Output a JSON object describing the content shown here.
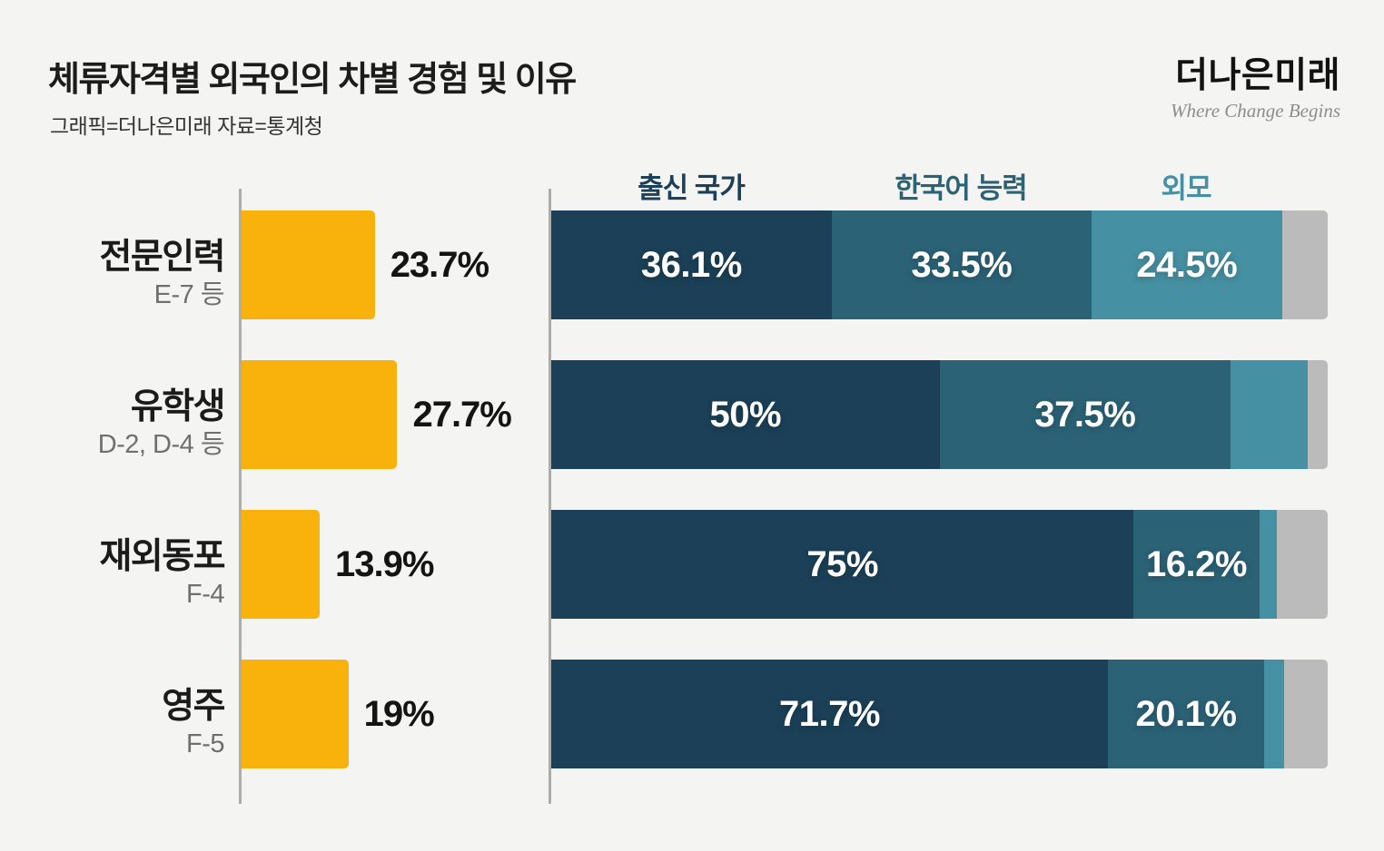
{
  "header": {
    "title": "체류자격별 외국인의 차별 경험 및 이유",
    "subtitle": "그래픽=더나은미래  자료=통계청",
    "logo_wordmark": "더나은미래",
    "logo_tagline": "Where Change Begins"
  },
  "colors": {
    "background": "#F4F4F2",
    "experience_bar": "#F9B20B",
    "origin_segment": "#1B4057",
    "korean_segment": "#2B6276",
    "appearance_segment": "#4590A2",
    "remainder_segment": "#BBBBBB",
    "axis_line": "#ACACAC"
  },
  "chart_data": {
    "type": "bar",
    "layout": "paired horizontal bars: left bar = discrimination experience rate (%), right bar = 100%-stacked reasons for discrimination",
    "unit": "%",
    "legend_position": "column headers above first stacked bar",
    "grid": false,
    "columns": [
      {
        "label": "출신 국가",
        "color": "#1B4057"
      },
      {
        "label": "한국어 능력",
        "color": "#2B6276"
      },
      {
        "label": "외모",
        "color": "#4590A2"
      }
    ],
    "unlabeled_segment_values_estimated": true,
    "rows": [
      {
        "label": "전문인력",
        "sublabel": "E-7 등",
        "experience_value": 23.7,
        "experience_label": "23.7%",
        "segments": [
          {
            "name": "출신 국가",
            "value": 36.1,
            "label": "36.1%"
          },
          {
            "name": "한국어 능력",
            "value": 33.5,
            "label": "33.5%"
          },
          {
            "name": "외모",
            "value": 24.5,
            "label": "24.5%"
          },
          {
            "name": "remainder",
            "value": 5.9,
            "label": ""
          }
        ]
      },
      {
        "label": "유학생",
        "sublabel": "D-2, D-4 등",
        "experience_value": 27.7,
        "experience_label": "27.7%",
        "segments": [
          {
            "name": "출신 국가",
            "value": 50,
            "label": "50%"
          },
          {
            "name": "한국어 능력",
            "value": 37.5,
            "label": "37.5%"
          },
          {
            "name": "외모",
            "value": 9.9,
            "label": ""
          },
          {
            "name": "remainder",
            "value": 2.6,
            "label": ""
          }
        ]
      },
      {
        "label": "재외동포",
        "sublabel": "F-4",
        "experience_value": 13.9,
        "experience_label": "13.9%",
        "segments": [
          {
            "name": "출신 국가",
            "value": 75,
            "label": "75%"
          },
          {
            "name": "한국어 능력",
            "value": 16.2,
            "label": "16.2%"
          },
          {
            "name": "외모",
            "value": 2.3,
            "label": ""
          },
          {
            "name": "remainder",
            "value": 6.5,
            "label": ""
          }
        ]
      },
      {
        "label": "영주",
        "sublabel": "F-5",
        "experience_value": 19,
        "experience_label": "19%",
        "segments": [
          {
            "name": "출신 국가",
            "value": 71.7,
            "label": "71.7%"
          },
          {
            "name": "한국어 능력",
            "value": 20.1,
            "label": "20.1%"
          },
          {
            "name": "외모",
            "value": 2.6,
            "label": ""
          },
          {
            "name": "remainder",
            "value": 5.6,
            "label": ""
          }
        ]
      }
    ]
  }
}
